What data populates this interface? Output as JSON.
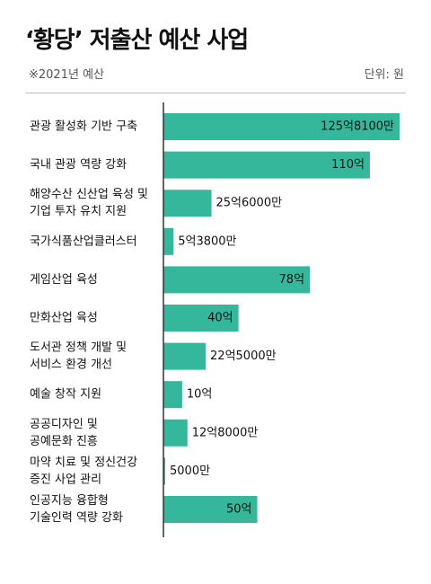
{
  "title": "‘황당’ 저출산 예산 사업",
  "subtitle": "※2021년 예산",
  "unit_label": "단위: 원",
  "colors": {
    "bar": "#35b79c",
    "axis": "#333333",
    "text": "#111111"
  },
  "chart_data": {
    "type": "bar",
    "orientation": "horizontal",
    "categories": [
      [
        "관광 활성화 기반 구축"
      ],
      [
        "국내 관광 역량 강화"
      ],
      [
        "해양수산 신산업 육성 및",
        "기업 투자 유치 지원"
      ],
      [
        "국가식품산업클러스터"
      ],
      [
        "게임산업 육성"
      ],
      [
        "만화산업 육성"
      ],
      [
        "도서관 정책 개발 및",
        "서비스 환경 개선"
      ],
      [
        "예술 창작 지원"
      ],
      [
        "공공디자인 및",
        "공예문화 진흥"
      ],
      [
        "마약 치료 및 정신건강",
        "증진 사업 관리"
      ],
      [
        "인공지능 융합형",
        "기술인력 역량 강화"
      ]
    ],
    "values": [
      12581000000,
      11000000000,
      2560000000,
      538000000,
      7800000000,
      4000000000,
      2250000000,
      1000000000,
      1280000000,
      50000000,
      5000000000
    ],
    "value_labels": [
      "125억8100만",
      "110억",
      "25억6000만",
      "5억3800만",
      "78억",
      "40억",
      "22억5000만",
      "10억",
      "12억8000만",
      "5000만",
      "50억"
    ],
    "label_inside": [
      true,
      true,
      false,
      false,
      true,
      true,
      false,
      false,
      false,
      false,
      true
    ],
    "unit": "원",
    "xlim": [
      0,
      12581000000
    ]
  }
}
